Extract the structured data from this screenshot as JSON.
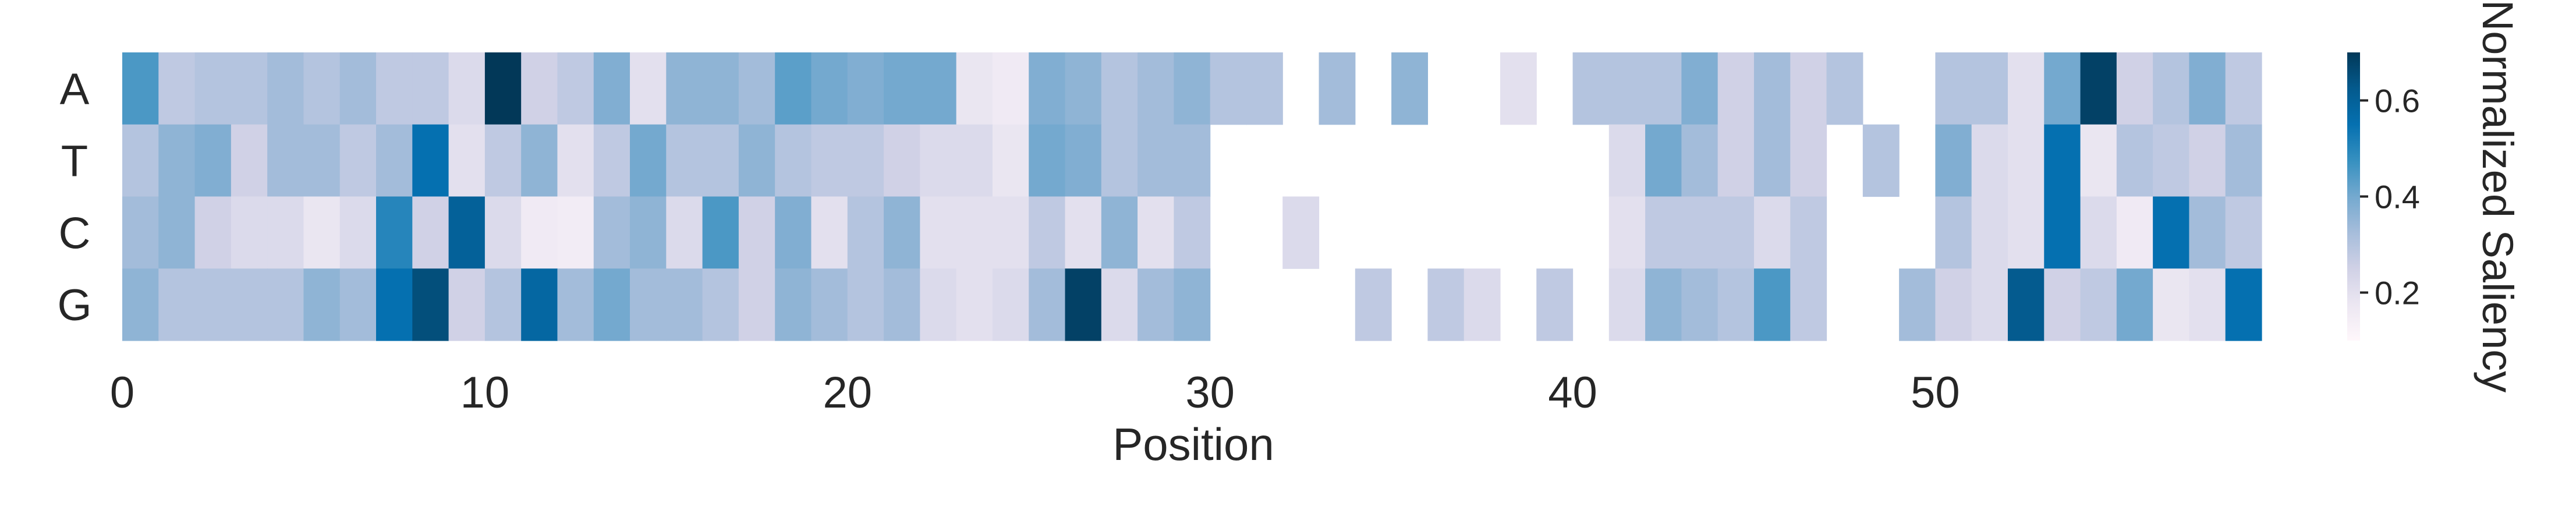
{
  "chart_data": {
    "type": "heatmap",
    "rows": [
      "A",
      "T",
      "C",
      "G"
    ],
    "x_ticks": [
      0,
      10,
      20,
      30,
      40,
      50
    ],
    "n_positions": 59,
    "xlabel": "Position",
    "colorbar_label": "Normalized Saliency",
    "colorbar_ticks": [
      0.2,
      0.4,
      0.6
    ],
    "value_range": [
      0.1,
      0.7
    ],
    "colormap": [
      "#fff7fb",
      "#ece7f2",
      "#d0d1e6",
      "#a6bddb",
      "#74a9cf",
      "#3690c0",
      "#0570b0",
      "#045a8d",
      "#023858"
    ],
    "missing_value_meaning": "blank cell",
    "values": [
      [
        0.45,
        0.28,
        0.3,
        0.3,
        0.33,
        0.3,
        0.33,
        0.28,
        0.28,
        0.22,
        0.7,
        0.25,
        0.28,
        0.38,
        0.2,
        0.36,
        0.36,
        0.33,
        0.43,
        0.4,
        0.38,
        0.4,
        0.4,
        0.18,
        0.16,
        0.38,
        0.36,
        0.3,
        0.33,
        0.36,
        0.3,
        0.3,
        null,
        0.33,
        null,
        0.36,
        null,
        null,
        0.2,
        null,
        0.3,
        0.3,
        0.3,
        0.38,
        0.25,
        0.33,
        0.25,
        0.3,
        null,
        null,
        0.3,
        0.3,
        0.2,
        0.4,
        0.68,
        0.25,
        0.3,
        0.38,
        0.28
      ],
      [
        0.3,
        0.36,
        0.38,
        0.25,
        0.33,
        0.33,
        0.28,
        0.33,
        0.55,
        0.2,
        0.28,
        0.36,
        0.2,
        0.28,
        0.4,
        0.3,
        0.3,
        0.36,
        0.3,
        0.28,
        0.28,
        0.25,
        0.22,
        0.22,
        0.18,
        0.4,
        0.38,
        0.3,
        0.33,
        0.33,
        null,
        null,
        null,
        null,
        null,
        null,
        null,
        null,
        null,
        null,
        null,
        0.22,
        0.4,
        0.33,
        0.25,
        0.33,
        0.25,
        null,
        0.3,
        null,
        0.38,
        0.22,
        0.2,
        0.55,
        0.18,
        0.3,
        0.28,
        0.25,
        0.33
      ],
      [
        0.33,
        0.36,
        0.25,
        0.22,
        0.22,
        0.18,
        0.22,
        0.5,
        0.25,
        0.6,
        0.22,
        0.16,
        0.15,
        0.33,
        0.36,
        0.22,
        0.45,
        0.25,
        0.38,
        0.2,
        0.3,
        0.36,
        0.2,
        0.2,
        0.2,
        0.28,
        0.2,
        0.36,
        0.2,
        0.28,
        null,
        null,
        0.22,
        null,
        null,
        null,
        null,
        null,
        null,
        null,
        null,
        0.2,
        0.28,
        0.28,
        0.28,
        0.22,
        0.28,
        null,
        null,
        null,
        0.3,
        0.22,
        0.2,
        0.55,
        0.22,
        0.16,
        0.55,
        0.33,
        0.28
      ],
      [
        0.36,
        0.3,
        0.3,
        0.3,
        0.3,
        0.36,
        0.33,
        0.55,
        0.65,
        0.25,
        0.3,
        0.58,
        0.33,
        0.4,
        0.33,
        0.33,
        0.3,
        0.25,
        0.36,
        0.33,
        0.3,
        0.33,
        0.22,
        0.2,
        0.22,
        0.33,
        0.68,
        0.22,
        0.33,
        0.36,
        null,
        null,
        null,
        null,
        0.28,
        null,
        0.28,
        0.22,
        null,
        0.28,
        null,
        0.22,
        0.36,
        0.33,
        0.3,
        0.45,
        0.28,
        null,
        null,
        0.33,
        0.25,
        0.22,
        0.62,
        0.25,
        0.28,
        0.4,
        0.18,
        0.2,
        0.55
      ]
    ]
  }
}
